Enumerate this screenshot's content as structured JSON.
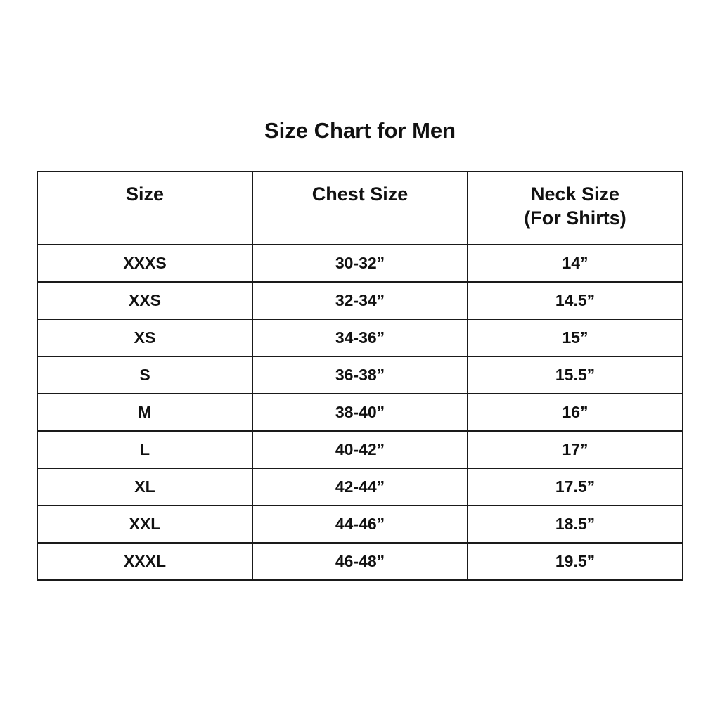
{
  "title": "Size Chart for Men",
  "table": {
    "headers": [
      {
        "line1": "Size",
        "line2": ""
      },
      {
        "line1": "Chest Size",
        "line2": ""
      },
      {
        "line1": "Neck Size",
        "line2": "(For Shirts)"
      }
    ],
    "rows": [
      [
        "XXXS",
        "30-32”",
        "14”"
      ],
      [
        "XXS",
        "32-34”",
        "14.5”"
      ],
      [
        "XS",
        "34-36”",
        "15”"
      ],
      [
        "S",
        "36-38”",
        "15.5”"
      ],
      [
        "M",
        "38-40”",
        "16”"
      ],
      [
        "L",
        "40-42”",
        "17”"
      ],
      [
        "XL",
        "42-44”",
        "17.5”"
      ],
      [
        "XXL",
        "44-46”",
        "18.5”"
      ],
      [
        "XXXL",
        "46-48”",
        "19.5”"
      ]
    ]
  }
}
